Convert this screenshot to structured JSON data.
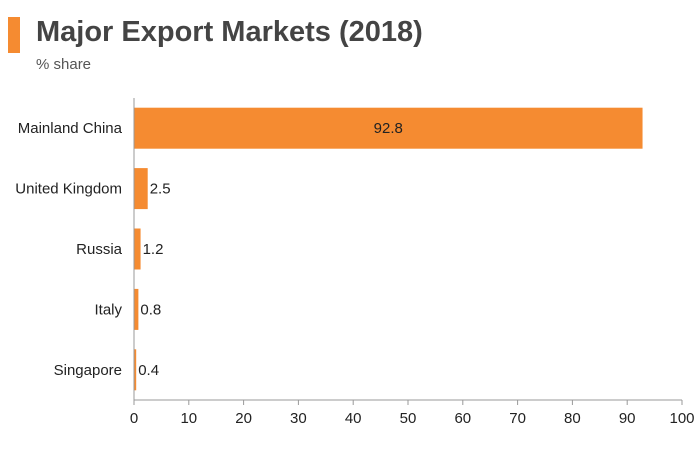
{
  "header": {
    "title": "Major Export Markets (2018)",
    "subtitle": "% share",
    "accent_color": "#f58b31"
  },
  "chart_data": {
    "type": "bar",
    "orientation": "horizontal",
    "title": "Major Export Markets (2018)",
    "subtitle": "% share",
    "categories": [
      "Mainland China",
      "United Kingdom",
      "Russia",
      "Italy",
      "Singapore"
    ],
    "values": [
      92.8,
      2.5,
      1.2,
      0.8,
      0.4
    ],
    "value_labels": [
      "92.8",
      "2.5",
      "1.2",
      "0.8",
      "0.4"
    ],
    "xlim": [
      0,
      100
    ],
    "xticks": [
      0,
      10,
      20,
      30,
      40,
      50,
      60,
      70,
      80,
      90,
      100
    ],
    "xtick_labels": [
      "0",
      "10",
      "20",
      "30",
      "40",
      "50",
      "60",
      "70",
      "80",
      "90",
      "100"
    ],
    "bar_color": "#f58b31",
    "grid": false,
    "legend": "none"
  }
}
